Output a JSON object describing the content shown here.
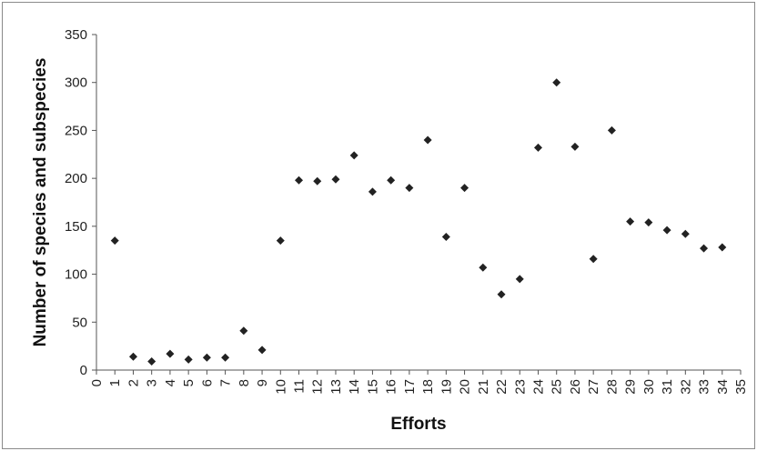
{
  "chart_data": {
    "type": "scatter",
    "xlabel": "Efforts",
    "ylabel": "Number of species and subspecies",
    "xlim": [
      0,
      35
    ],
    "ylim": [
      0,
      350
    ],
    "x_ticks": [
      "0",
      "1",
      "2",
      "3",
      "4",
      "5",
      "6",
      "7",
      "8",
      "9",
      "10",
      "11",
      "12",
      "13",
      "14",
      "15",
      "16",
      "17",
      "18",
      "19",
      "20",
      "21",
      "22",
      "23",
      "24",
      "25",
      "26",
      "27",
      "28",
      "29",
      "30",
      "31",
      "32",
      "33",
      "34",
      "35"
    ],
    "y_ticks": [
      "0",
      "50",
      "100",
      "150",
      "200",
      "250",
      "300",
      "350"
    ],
    "grid": false,
    "legend": "none",
    "marker": "diamond",
    "marker_color": "#222222",
    "x": [
      1,
      2,
      3,
      4,
      5,
      6,
      7,
      8,
      9,
      10,
      11,
      12,
      13,
      14,
      15,
      16,
      17,
      18,
      19,
      20,
      21,
      22,
      23,
      24,
      25,
      26,
      27,
      28,
      29,
      30,
      31,
      32,
      33,
      34
    ],
    "values": [
      135,
      14,
      9,
      17,
      11,
      13,
      13,
      41,
      21,
      135,
      198,
      197,
      199,
      224,
      186,
      198,
      190,
      240,
      139,
      190,
      107,
      79,
      95,
      232,
      300,
      233,
      116,
      250,
      155,
      154,
      146,
      142,
      127,
      128
    ]
  }
}
